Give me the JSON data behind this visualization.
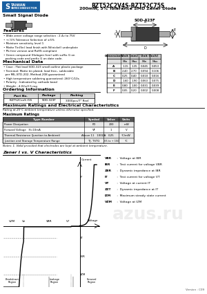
{
  "title_line1": "BZT52C2V4S-BZT52C75S",
  "title_line2": "200mW, 5% Tolerance SMD Zener Diode",
  "subtitle": "Small Signal Diode",
  "package": "SOD-323F",
  "features": [
    "Wide zener voltage range selection : 2.4v to 75V",
    "+/-5% Tolerance Selection of ±5%",
    "Moisture sensitivity level 1",
    "Matte Tin(Sn) lead finish with Ni(nickel) underplate",
    "Pb free version and RoHS compliant",
    "Green compound (Halogen free) with suffix G on",
    "  packing code and prefix G on date code."
  ],
  "mechanical_data": [
    "Case : Flat lead SOD-323 small outline plastic package",
    "Terminal: Matte tin plated, lead free., solderable",
    "  per MIL-STD-202, Method-208 guaranteed",
    "High temperature soldering guaranteed: 260°C/10s",
    "Polarity : Indicated by cathode band",
    "Weight : 4.02±0.5 mg"
  ],
  "ordering_headers": [
    "Part No.",
    "Package",
    "Packing"
  ],
  "ordering_row": [
    "BZT52CxxS /G5",
    "SOD-323F",
    "3000pcs/7\" Reel"
  ],
  "junction_temp": [
    "-65 to + 150",
    "°C"
  ],
  "notes": "Notes: 1. Valid provided that electrodes are kept at ambient temperature.",
  "zener_title": "Zener I vs. V Characteristics",
  "legend_items": [
    [
      "VBR",
      " :  Voltage at IBR"
    ],
    [
      "IBR",
      " :  Test current for voltage VBR"
    ],
    [
      "ZBR",
      " :  Dynamic impedance at IBR"
    ],
    [
      "IT",
      " :  Test current for voltage VT"
    ],
    [
      "VT",
      " :  Voltage at current IT"
    ],
    [
      "ZZT",
      " :  Dynamic impedance at IT"
    ],
    [
      "IZM",
      " :  Maximum steady state current"
    ],
    [
      "VZM",
      " :  Voltage at IZM"
    ]
  ],
  "version": "Version : C09",
  "bg_color": "#ffffff",
  "logo_blue": "#1a5fa0",
  "dim_data": [
    [
      "A",
      "1.15",
      "1.35",
      "0.045",
      "0.053"
    ],
    [
      "B",
      "2.40",
      "2.70",
      "0.094",
      "0.106"
    ],
    [
      "C",
      "0.25",
      "0.40",
      "0.010",
      "0.016"
    ],
    [
      "D",
      "1.60",
      "1.90",
      "0.063",
      "0.075"
    ],
    [
      "E",
      "0.80",
      "1.00",
      "0.031",
      "0.039"
    ],
    [
      "F",
      "0.05",
      "0.20",
      "0.002",
      "0.008"
    ]
  ]
}
